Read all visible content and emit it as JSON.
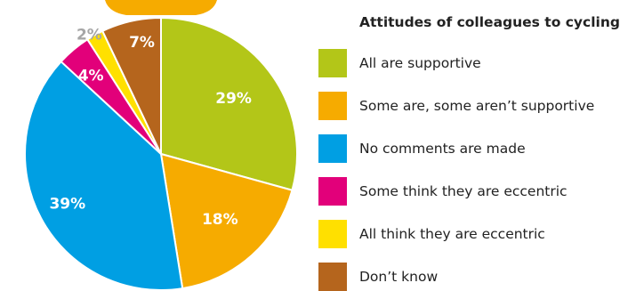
{
  "chart_data": {
    "type": "pie",
    "title": "Attitudes of colleagues to cycling",
    "slices": [
      {
        "label": "All are supportive",
        "value": 29,
        "text": "29%",
        "color": "#b3c618",
        "text_color": "#ffffff"
      },
      {
        "label": "Some are, some aren’t supportive",
        "value": 18,
        "text": "18%",
        "color": "#f6ab00",
        "text_color": "#ffffff"
      },
      {
        "label": "No comments are made",
        "value": 39,
        "text": "39%",
        "color": "#009fe3",
        "text_color": "#ffffff"
      },
      {
        "label": "Some think they are eccentric",
        "value": 4,
        "text": "4%",
        "color": "#e2007a",
        "text_color": "#ffffff"
      },
      {
        "label": "All think they are eccentric",
        "value": 2,
        "text": "2%",
        "color": "#ffe000",
        "text_color": "#a6a6a6"
      },
      {
        "label": "Don’t know",
        "value": 7,
        "text": "7%",
        "color": "#b5651d",
        "text_color": "#ffffff"
      }
    ],
    "start_angle_deg": 0,
    "direction": "clockwise",
    "legend_position": "right"
  },
  "decor": {
    "top_tab_color": "#f6ab00"
  }
}
